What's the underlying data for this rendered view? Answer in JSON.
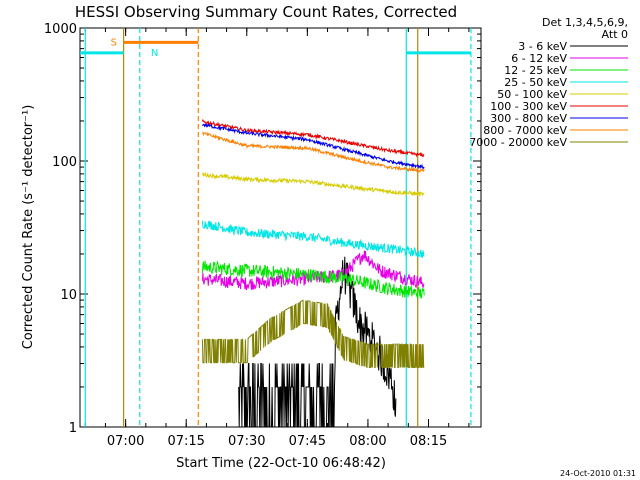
{
  "chart_data": {
    "type": "line",
    "title": "HESSI Observing Summary Count Rates, Corrected",
    "xlabel": "Start Time (22-Oct-10 06:48:42)",
    "ylabel": "Corrected Count Rate (s⁻¹ detector⁻¹)",
    "y_scale": "log",
    "ylim": [
      1,
      1000
    ],
    "y_ticks": [
      {
        "value": 1,
        "label": "1"
      },
      {
        "value": 10,
        "label": "10"
      },
      {
        "value": 100,
        "label": "100"
      },
      {
        "value": 1000,
        "label": "1000"
      }
    ],
    "xlim": [
      "06:48:42",
      "08:28:00"
    ],
    "x_ticks": [
      {
        "value": "07:00",
        "label": "07:00"
      },
      {
        "value": "07:15",
        "label": "07:15"
      },
      {
        "value": "07:30",
        "label": "07:30"
      },
      {
        "value": "07:45",
        "label": "07:45"
      },
      {
        "value": "08:00",
        "label": "08:00"
      },
      {
        "value": "08:15",
        "label": "08:15"
      }
    ],
    "legend": {
      "header": [
        "Det 1,3,4,5,6,9,",
        "Att 0"
      ],
      "placement": "right"
    },
    "series": [
      {
        "name": "3 - 6 keV",
        "color": "#000000",
        "points": [
          [
            "07:28",
            2
          ],
          [
            "07:35",
            2
          ],
          [
            "07:42",
            2
          ],
          [
            "07:48",
            2
          ],
          [
            "07:51",
            4
          ],
          [
            "07:54",
            15
          ],
          [
            "07:58",
            6
          ],
          [
            "08:02",
            4
          ],
          [
            "08:06",
            2.2
          ],
          [
            "08:07",
            1.3
          ]
        ]
      },
      {
        "name": "6 - 12 keV",
        "color": "#e600e6",
        "points": [
          [
            "07:19",
            13
          ],
          [
            "07:30",
            12
          ],
          [
            "07:45",
            13
          ],
          [
            "07:54",
            14
          ],
          [
            "07:59",
            20
          ],
          [
            "08:03",
            15
          ],
          [
            "08:10",
            13
          ],
          [
            "08:14",
            12
          ]
        ]
      },
      {
        "name": "12 - 25 keV",
        "color": "#00e600",
        "points": [
          [
            "07:19",
            16
          ],
          [
            "07:30",
            15
          ],
          [
            "07:45",
            14
          ],
          [
            "07:55",
            13
          ],
          [
            "08:05",
            11
          ],
          [
            "08:14",
            10
          ]
        ]
      },
      {
        "name": "25 - 50 keV",
        "color": "#00e6e6",
        "points": [
          [
            "07:19",
            34
          ],
          [
            "07:30",
            29
          ],
          [
            "07:45",
            27
          ],
          [
            "07:55",
            24
          ],
          [
            "08:05",
            22
          ],
          [
            "08:14",
            20
          ]
        ]
      },
      {
        "name": "50 - 100 keV",
        "color": "#d6cc00",
        "points": [
          [
            "07:19",
            79
          ],
          [
            "07:30",
            73
          ],
          [
            "07:45",
            70
          ],
          [
            "07:55",
            64
          ],
          [
            "08:05",
            59
          ],
          [
            "08:14",
            56
          ]
        ]
      },
      {
        "name": "100 - 300 keV",
        "color": "#e60000",
        "points": [
          [
            "07:19",
            198
          ],
          [
            "07:30",
            170
          ],
          [
            "07:45",
            158
          ],
          [
            "07:55",
            138
          ],
          [
            "08:05",
            120
          ],
          [
            "08:14",
            110
          ]
        ]
      },
      {
        "name": "300 - 800 keV",
        "color": "#0000e6",
        "points": [
          [
            "07:19",
            188
          ],
          [
            "07:30",
            162
          ],
          [
            "07:45",
            145
          ],
          [
            "07:55",
            120
          ],
          [
            "08:05",
            100
          ],
          [
            "08:14",
            90
          ]
        ]
      },
      {
        "name": "800 - 7000 keV",
        "color": "#ff8000",
        "points": [
          [
            "07:19",
            162
          ],
          [
            "07:30",
            130
          ],
          [
            "07:45",
            125
          ],
          [
            "07:55",
            105
          ],
          [
            "08:05",
            90
          ],
          [
            "08:14",
            84
          ]
        ]
      },
      {
        "name": "7000 - 20000 keV",
        "color": "#808000",
        "points": [
          [
            "07:19",
            3.8
          ],
          [
            "07:30",
            3.8
          ],
          [
            "07:36",
            5.5
          ],
          [
            "07:44",
            7.5
          ],
          [
            "07:50",
            7
          ],
          [
            "07:54",
            4
          ],
          [
            "08:00",
            3.5
          ],
          [
            "08:10",
            3.5
          ],
          [
            "08:14",
            3.5
          ]
        ]
      }
    ],
    "markers": [
      {
        "label": "",
        "kind": "cyan-bar",
        "color": "#00e6e6",
        "value": 650,
        "from": "06:48:42",
        "to": "06:59:30"
      },
      {
        "label": "S",
        "kind": "orange-bar",
        "color": "#ff8000",
        "value": 780,
        "from": "06:59:30",
        "to": "07:18:00"
      },
      {
        "label": "N",
        "kind": "text",
        "color": "#00e6e6",
        "value": 650,
        "from": "07:05:00",
        "to": "07:05:00"
      },
      {
        "label": "",
        "kind": "cyan-bar",
        "color": "#00e6e6",
        "value": 650,
        "from": "08:09:30",
        "to": "08:25:30"
      }
    ],
    "vlines": [
      {
        "time": "06:50:00",
        "color": "#00e6e6",
        "style": "solid"
      },
      {
        "time": "06:59:30",
        "color": "#c08000",
        "style": "solid"
      },
      {
        "time": "07:03:30",
        "color": "#00e6e6",
        "style": "dashed"
      },
      {
        "time": "07:18:00",
        "color": "#ff8000",
        "style": "dashed"
      },
      {
        "time": "08:09:30",
        "color": "#00e6e6",
        "style": "solid"
      },
      {
        "time": "08:12:20",
        "color": "#c08000",
        "style": "solid"
      },
      {
        "time": "08:25:30",
        "color": "#00e6e6",
        "style": "dashed"
      }
    ]
  },
  "footer": {
    "timestamp": "24-Oct-2010 01:31"
  }
}
